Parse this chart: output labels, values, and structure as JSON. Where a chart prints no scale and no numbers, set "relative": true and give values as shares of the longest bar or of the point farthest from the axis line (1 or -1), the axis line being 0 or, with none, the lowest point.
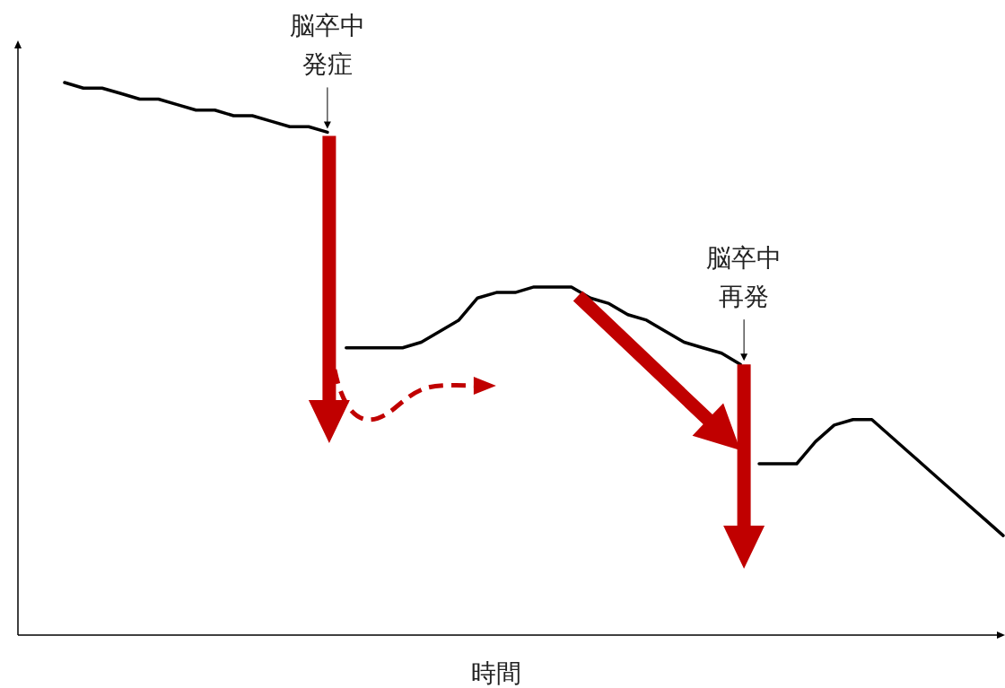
{
  "chart_data": {
    "type": "line",
    "relative": true,
    "xlabel": "時間",
    "annotations": [
      "脳卒中発症",
      "脳卒中再発"
    ],
    "categories": [
      null,
      null,
      null,
      null,
      null,
      null,
      null,
      null,
      null,
      null,
      null,
      null,
      null,
      null,
      null,
      null,
      null,
      null,
      null,
      null,
      null,
      null,
      null,
      null,
      null,
      null,
      null,
      null,
      null,
      null,
      null,
      null,
      null,
      null,
      null,
      null,
      null,
      null,
      null,
      null,
      null,
      null,
      null,
      null,
      null,
      null,
      null,
      null,
      null,
      null,
      null
    ],
    "series": [
      {
        "color": "#000000",
        "values": [
          1.0,
          0.99,
          0.99,
          0.98,
          0.97,
          0.97,
          0.96,
          0.95,
          0.95,
          0.94,
          0.94,
          0.93,
          0.92,
          0.92,
          0.91,
          null,
          null,
          null,
          null,
          null,
          null,
          null,
          null,
          null,
          null,
          null,
          null,
          null,
          null,
          null,
          null,
          null,
          null,
          null,
          null,
          null,
          null,
          null,
          null,
          null,
          null,
          null,
          null,
          null,
          null,
          null,
          null,
          null,
          null,
          null,
          null
        ]
      },
      {
        "color": "#000000",
        "values": [
          null,
          null,
          null,
          null,
          null,
          null,
          null,
          null,
          null,
          null,
          null,
          null,
          null,
          null,
          null,
          0.52,
          0.52,
          0.52,
          0.52,
          0.53,
          0.55,
          0.57,
          0.61,
          0.62,
          0.62,
          0.63,
          0.63,
          0.63,
          0.61,
          0.6,
          0.58,
          0.57,
          0.55,
          0.53,
          0.52,
          0.51,
          0.49,
          null,
          null,
          null,
          null,
          null,
          null,
          null,
          null,
          null,
          null,
          null,
          null,
          null,
          null
        ]
      },
      {
        "color": "#000000",
        "values": [
          null,
          null,
          null,
          null,
          null,
          null,
          null,
          null,
          null,
          null,
          null,
          null,
          null,
          null,
          null,
          null,
          null,
          null,
          null,
          null,
          null,
          null,
          null,
          null,
          null,
          null,
          null,
          null,
          null,
          null,
          null,
          null,
          null,
          null,
          null,
          null,
          null,
          0.31,
          0.31,
          0.31,
          0.35,
          0.38,
          0.39,
          0.39,
          0.36,
          0.33,
          0.3,
          0.27,
          0.24,
          0.21,
          0.18
        ]
      }
    ]
  }
}
